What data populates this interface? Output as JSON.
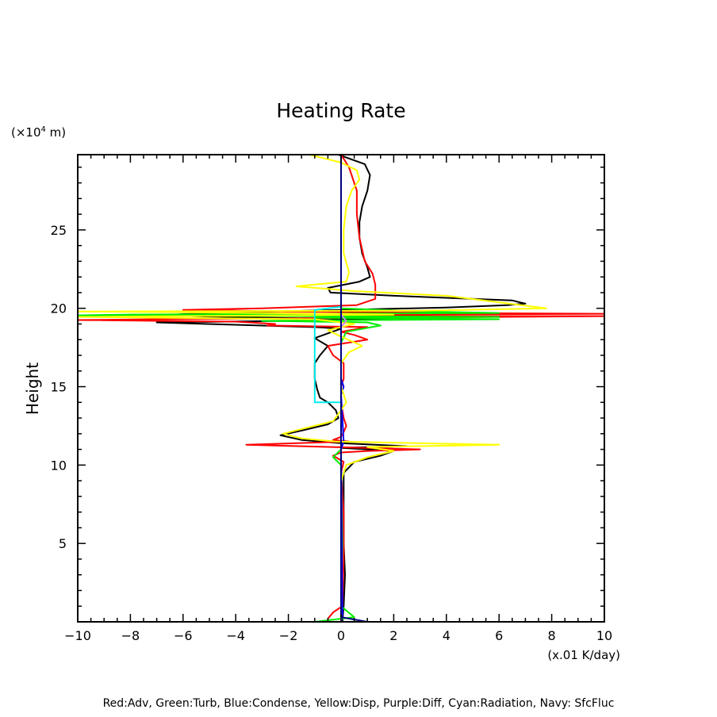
{
  "chart_data": {
    "type": "line",
    "title": "Heating Rate",
    "ylabel": "Height",
    "yunit": "(×10⁴ m)",
    "yunit_base": "(×10",
    "yunit_exp": "4",
    "yunit_tail": " m)",
    "xunit": "(x.01 K/day)",
    "xlim": [
      -10,
      10
    ],
    "ylim": [
      0,
      29.8
    ],
    "xticks": [
      -10,
      -8,
      -6,
      -4,
      -2,
      0,
      2,
      4,
      6,
      8,
      10
    ],
    "xtick_labels": [
      "−10",
      "−8",
      "−6",
      "−4",
      "−2",
      "0",
      "2",
      "4",
      "6",
      "8",
      "10"
    ],
    "yticks": [
      5,
      10,
      15,
      20,
      25
    ],
    "ytick_labels": [
      "5",
      "10",
      "15",
      "20",
      "25"
    ],
    "grid": false,
    "legend_text": "Red:Adv, Green:Turb, Blue:Condense, Yellow:Disp, Purple:Diff, Cyan:Radiation, Navy: SfcFluc",
    "legend_placement": "bottom",
    "series": [
      {
        "name": "Black",
        "color": "#000000",
        "points": [
          [
            -0.1,
            29.8
          ],
          [
            0.9,
            29.2
          ],
          [
            1.1,
            28.5
          ],
          [
            1.0,
            27.5
          ],
          [
            0.8,
            26.5
          ],
          [
            0.7,
            25.5
          ],
          [
            0.7,
            24.5
          ],
          [
            0.8,
            23.5
          ],
          [
            1.0,
            22.6
          ],
          [
            1.1,
            22.0
          ],
          [
            0.7,
            21.7
          ],
          [
            -0.5,
            21.3
          ],
          [
            -0.4,
            21.0
          ],
          [
            2.0,
            20.8
          ],
          [
            6.5,
            20.5
          ],
          [
            7.0,
            20.3
          ],
          [
            6.3,
            20.2
          ],
          [
            4.0,
            20.05
          ],
          [
            0.0,
            19.9
          ],
          [
            -5.0,
            19.7
          ],
          [
            -7.0,
            19.55
          ],
          [
            -3.0,
            19.4
          ],
          [
            2.0,
            19.3
          ],
          [
            -2.0,
            19.2
          ],
          [
            -7.0,
            19.1
          ],
          [
            -4.0,
            18.95
          ],
          [
            -1.0,
            18.8
          ],
          [
            0.0,
            18.7
          ],
          [
            -0.5,
            18.4
          ],
          [
            -1.0,
            18.1
          ],
          [
            -0.5,
            17.6
          ],
          [
            -0.8,
            17.0
          ],
          [
            -1.0,
            16.5
          ],
          [
            -1.0,
            15.5
          ],
          [
            -0.9,
            14.8
          ],
          [
            -0.8,
            14.3
          ],
          [
            -0.5,
            14.0
          ],
          [
            -0.2,
            13.5
          ],
          [
            -0.1,
            13.0
          ],
          [
            -0.5,
            12.6
          ],
          [
            -1.5,
            12.2
          ],
          [
            -2.3,
            11.9
          ],
          [
            -1.5,
            11.6
          ],
          [
            0.0,
            11.4
          ],
          [
            2.5,
            11.2
          ],
          [
            0.0,
            11.1
          ],
          [
            2.0,
            10.9
          ],
          [
            1.5,
            10.6
          ],
          [
            0.5,
            10.2
          ],
          [
            0.1,
            9.5
          ],
          [
            0.1,
            8.0
          ],
          [
            0.1,
            5.0
          ],
          [
            0.15,
            3.0
          ],
          [
            0.1,
            1.0
          ],
          [
            0.05,
            0.0
          ]
        ]
      },
      {
        "name": "Red:Adv",
        "color": "#ff0000",
        "points": [
          [
            0.0,
            29.8
          ],
          [
            0.3,
            29.0
          ],
          [
            0.6,
            27.5
          ],
          [
            0.6,
            26.0
          ],
          [
            0.7,
            24.5
          ],
          [
            0.9,
            23.0
          ],
          [
            1.2,
            22.2
          ],
          [
            1.3,
            21.5
          ],
          [
            1.3,
            20.6
          ],
          [
            0.6,
            20.2
          ],
          [
            -3.0,
            20.0
          ],
          [
            -6.0,
            19.9
          ],
          [
            -2.0,
            19.8
          ],
          [
            4.0,
            19.7
          ],
          [
            10.0,
            19.65
          ],
          [
            3.0,
            19.6
          ],
          [
            -1.0,
            19.5
          ],
          [
            10.0,
            19.5
          ],
          [
            2.0,
            19.4
          ],
          [
            -7.0,
            19.3
          ],
          [
            -10.0,
            19.25
          ],
          [
            -4.0,
            19.15
          ],
          [
            -2.5,
            19.0
          ],
          [
            -2.8,
            18.9
          ],
          [
            1.0,
            18.8
          ],
          [
            0.0,
            18.5
          ],
          [
            0.5,
            18.3
          ],
          [
            1.0,
            18.0
          ],
          [
            -0.5,
            17.6
          ],
          [
            -0.3,
            17.0
          ],
          [
            0.1,
            16.5
          ],
          [
            0.1,
            15.5
          ],
          [
            0.0,
            15.0
          ],
          [
            0.0,
            14.0
          ],
          [
            0.1,
            13.0
          ],
          [
            0.2,
            12.5
          ],
          [
            0.1,
            12.1
          ],
          [
            0.0,
            11.8
          ],
          [
            -0.3,
            11.6
          ],
          [
            0.3,
            11.5
          ],
          [
            -3.6,
            11.3
          ],
          [
            -1.5,
            11.2
          ],
          [
            3.0,
            11.0
          ],
          [
            1.0,
            10.9
          ],
          [
            0.0,
            10.8
          ],
          [
            -0.3,
            10.6
          ],
          [
            0.1,
            10.2
          ],
          [
            0.0,
            9.5
          ],
          [
            0.1,
            7.0
          ],
          [
            0.1,
            4.0
          ],
          [
            0.05,
            1.0
          ],
          [
            -0.3,
            0.6
          ],
          [
            -0.5,
            0.2
          ]
        ]
      },
      {
        "name": "Green:Turb",
        "color": "#00ee00",
        "points": [
          [
            0.0,
            20.0
          ],
          [
            3.0,
            19.8
          ],
          [
            6.0,
            19.7
          ],
          [
            -8.0,
            19.6
          ],
          [
            -10.0,
            19.55
          ],
          [
            -2.0,
            19.5
          ],
          [
            6.0,
            19.45
          ],
          [
            -1.0,
            19.4
          ],
          [
            6.0,
            19.3
          ],
          [
            -3.0,
            19.2
          ],
          [
            1.0,
            19.1
          ],
          [
            1.5,
            18.9
          ],
          [
            0.2,
            18.5
          ],
          [
            0.0,
            17.8
          ],
          [
            0.0,
            15.0
          ],
          [
            0.0,
            12.0
          ],
          [
            0.0,
            11.0
          ],
          [
            -0.3,
            10.5
          ],
          [
            0.0,
            10.0
          ],
          [
            0.05,
            5.0
          ],
          [
            0.0,
            1.0
          ],
          [
            0.5,
            0.3
          ],
          [
            -1.0,
            0.0
          ]
        ]
      },
      {
        "name": "Blue:Condense",
        "color": "#0000ff",
        "points": [
          [
            0.0,
            15.5
          ],
          [
            0.1,
            15.0
          ],
          [
            0.0,
            14.5
          ],
          [
            0.1,
            11.5
          ],
          [
            0.0,
            11.0
          ],
          [
            0.05,
            0.5
          ],
          [
            0.0,
            0.0
          ]
        ]
      },
      {
        "name": "Yellow:Disp",
        "color": "#ffff00",
        "points": [
          [
            -1.2,
            29.8
          ],
          [
            0.0,
            29.3
          ],
          [
            0.6,
            28.8
          ],
          [
            0.7,
            28.2
          ],
          [
            0.4,
            27.5
          ],
          [
            0.2,
            26.5
          ],
          [
            0.1,
            25.0
          ],
          [
            0.1,
            23.5
          ],
          [
            0.3,
            22.3
          ],
          [
            0.2,
            21.7
          ],
          [
            -1.7,
            21.4
          ],
          [
            0.5,
            21.1
          ],
          [
            4.0,
            20.8
          ],
          [
            7.8,
            20.0
          ],
          [
            3.0,
            19.85
          ],
          [
            -10.0,
            19.8
          ],
          [
            -3.0,
            19.7
          ],
          [
            2.0,
            19.6
          ],
          [
            -10.0,
            19.45
          ],
          [
            -1.0,
            19.3
          ],
          [
            0.5,
            19.0
          ],
          [
            -0.5,
            18.6
          ],
          [
            0.0,
            18.2
          ],
          [
            0.8,
            17.6
          ],
          [
            0.3,
            17.2
          ],
          [
            0.0,
            16.5
          ],
          [
            0.0,
            15.0
          ],
          [
            0.2,
            14.0
          ],
          [
            0.0,
            13.5
          ],
          [
            -0.3,
            12.8
          ],
          [
            -2.2,
            12.0
          ],
          [
            -1.5,
            11.7
          ],
          [
            -0.2,
            11.5
          ],
          [
            6.0,
            11.3
          ],
          [
            1.0,
            11.15
          ],
          [
            2.0,
            10.9
          ],
          [
            1.0,
            10.5
          ],
          [
            0.2,
            10.0
          ],
          [
            0.0,
            9.0
          ],
          [
            0.0,
            0.0
          ]
        ]
      },
      {
        "name": "Purple:Diff",
        "color": "#cc88ee",
        "points": [
          [
            0.0,
            19.6
          ],
          [
            0.2,
            19.2
          ],
          [
            0.0,
            18.8
          ],
          [
            0.0,
            0.0
          ]
        ]
      },
      {
        "name": "Cyan:Radiation",
        "color": "#00eeee",
        "points": [
          [
            0.0,
            20.1
          ],
          [
            -1.0,
            19.9
          ],
          [
            -1.0,
            14.0
          ],
          [
            0.0,
            14.0
          ]
        ]
      },
      {
        "name": "Navy: SfcFluc",
        "color": "#000080",
        "points": [
          [
            0.0,
            29.8
          ],
          [
            0.0,
            0.3
          ],
          [
            1.0,
            0.0
          ]
        ]
      }
    ]
  }
}
